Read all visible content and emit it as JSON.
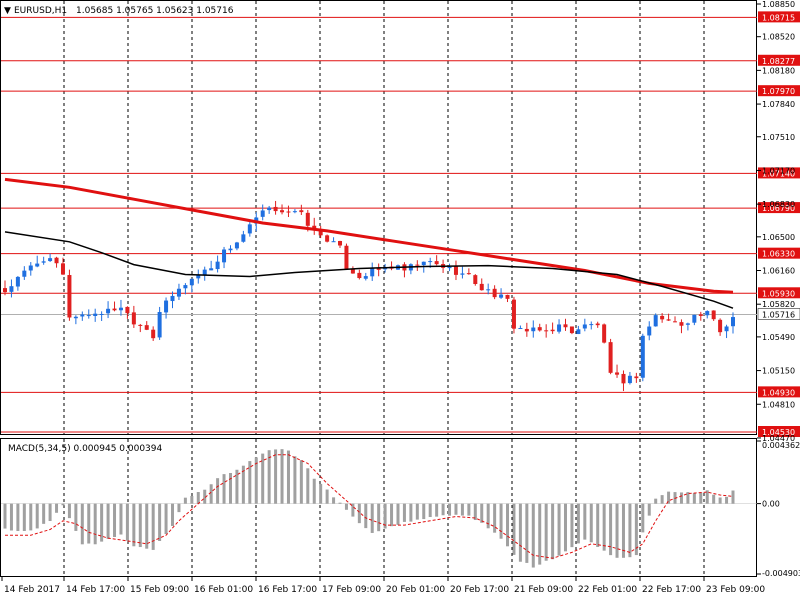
{
  "header": {
    "symbol": "EURUSD,H1",
    "ohlc": "1.05685 1.05765 1.05623 1.05716",
    "arrow": "▼"
  },
  "macd_header": {
    "label": "MACD(5,34,5) 0.000945 0.000394"
  },
  "colors": {
    "bull": "#1f6fe0",
    "bear": "#e02020",
    "ma_red": "#e01010",
    "ma_black": "#000000",
    "level": "#e01010",
    "macd_hist": "#a0a0a0",
    "macd_signal": "#e01010",
    "grid": "#000000"
  },
  "chart_data": [
    {
      "type": "line",
      "name": "EURUSD H1 price (candlesticks)",
      "ylim": [
        1.0453,
        1.0885
      ],
      "y_ticks": [
        "1.08850",
        "1.08520",
        "1.08180",
        "1.07840",
        "1.07510",
        "1.07170",
        "1.06830",
        "1.06500",
        "1.06160",
        "1.05820",
        "1.05490",
        "1.05150",
        "1.04810",
        "1.04470"
      ],
      "x_ticks": [
        "14 Feb 2017",
        "14 Feb 17:00",
        "15 Feb 09:00",
        "16 Feb 01:00",
        "16 Feb 17:00",
        "17 Feb 09:00",
        "20 Feb 01:00",
        "20 Feb 17:00",
        "21 Feb 09:00",
        "22 Feb 01:00",
        "22 Feb 17:00",
        "23 Feb 09:00"
      ],
      "horizontal_levels": [
        "1.08715",
        "1.08277",
        "1.07970",
        "1.07140",
        "1.06790",
        "1.06330",
        "1.05930",
        "1.04930",
        "1.04530"
      ],
      "current_price": "1.05716",
      "close_path": [
        [
          0,
          1.0595
        ],
        [
          4,
          1.062
        ],
        [
          6,
          1.0628
        ],
        [
          8,
          1.0622
        ],
        [
          9,
          1.061
        ],
        [
          10,
          1.057
        ],
        [
          13,
          1.0572
        ],
        [
          16,
          1.0575
        ],
        [
          18,
          1.058
        ],
        [
          20,
          1.0565
        ],
        [
          22,
          1.0558
        ],
        [
          23,
          1.055
        ],
        [
          24,
          1.0575
        ],
        [
          26,
          1.059
        ],
        [
          28,
          1.0603
        ],
        [
          30,
          1.0612
        ],
        [
          32,
          1.062
        ],
        [
          34,
          1.0635
        ],
        [
          36,
          1.0645
        ],
        [
          38,
          1.066
        ],
        [
          40,
          1.0675
        ],
        [
          42,
          1.0678
        ],
        [
          44,
          1.0676
        ],
        [
          46,
          1.0672
        ],
        [
          48,
          1.0655
        ],
        [
          50,
          1.0648
        ],
        [
          52,
          1.0638
        ],
        [
          53,
          1.062
        ],
        [
          55,
          1.061
        ],
        [
          57,
          1.0615
        ],
        [
          60,
          1.062
        ],
        [
          62,
          1.0616
        ],
        [
          64,
          1.0622
        ],
        [
          66,
          1.0624
        ],
        [
          68,
          1.062
        ],
        [
          70,
          1.0615
        ],
        [
          72,
          1.061
        ],
        [
          74,
          1.0598
        ],
        [
          76,
          1.0592
        ],
        [
          78,
          1.0585
        ],
        [
          79,
          1.056
        ],
        [
          81,
          1.0555
        ],
        [
          84,
          1.0555
        ],
        [
          86,
          1.056
        ],
        [
          88,
          1.0555
        ],
        [
          90,
          1.056
        ],
        [
          92,
          1.0562
        ],
        [
          93,
          1.054
        ],
        [
          94,
          1.051
        ],
        [
          96,
          1.0505
        ],
        [
          98,
          1.051
        ],
        [
          99,
          1.055
        ],
        [
          101,
          1.057
        ],
        [
          103,
          1.0565
        ],
        [
          105,
          1.0562
        ],
        [
          107,
          1.057
        ],
        [
          109,
          1.0572
        ],
        [
          110,
          1.0565
        ],
        [
          111,
          1.0555
        ],
        [
          112,
          1.056
        ],
        [
          113,
          1.0572
        ]
      ],
      "series": [
        {
          "color": "#e01010",
          "points": [
            [
              0,
              1.0708
            ],
            [
              10,
              1.07
            ],
            [
              20,
              1.0688
            ],
            [
              30,
              1.0676
            ],
            [
              40,
              1.0664
            ],
            [
              50,
              1.0656
            ],
            [
              60,
              1.0646
            ],
            [
              70,
              1.0636
            ],
            [
              80,
              1.0626
            ],
            [
              90,
              1.0616
            ],
            [
              100,
              1.0603
            ],
            [
              110,
              1.0595
            ],
            [
              113,
              1.0594
            ]
          ]
        },
        {
          "color": "#000000",
          "points": [
            [
              0,
              1.0655
            ],
            [
              10,
              1.0645
            ],
            [
              15,
              1.0634
            ],
            [
              20,
              1.0622
            ],
            [
              28,
              1.0612
            ],
            [
              38,
              1.061
            ],
            [
              45,
              1.0614
            ],
            [
              55,
              1.0618
            ],
            [
              65,
              1.062
            ],
            [
              75,
              1.0621
            ],
            [
              85,
              1.0618
            ],
            [
              95,
              1.0612
            ],
            [
              102,
              1.06
            ],
            [
              110,
              1.0585
            ],
            [
              113,
              1.0578
            ]
          ]
        }
      ]
    },
    {
      "type": "bar",
      "name": "MACD(5,34,5)",
      "ylim": [
        -0.004903,
        0.004362
      ],
      "y_ticks": [
        "0.004362",
        "0.00",
        "-0.004903"
      ],
      "histogram_path": [
        [
          0,
          -0.0018
        ],
        [
          4,
          -0.0019
        ],
        [
          7,
          -0.0012
        ],
        [
          9,
          -0.0001
        ],
        [
          10,
          -0.001
        ],
        [
          12,
          -0.0028
        ],
        [
          14,
          -0.0029
        ],
        [
          16,
          -0.0025
        ],
        [
          18,
          -0.0022
        ],
        [
          20,
          -0.003
        ],
        [
          23,
          -0.0032
        ],
        [
          26,
          -0.0016
        ],
        [
          28,
          0.0004
        ],
        [
          31,
          0.001
        ],
        [
          33,
          0.0018
        ],
        [
          36,
          0.0024
        ],
        [
          38,
          0.003
        ],
        [
          40,
          0.0035
        ],
        [
          42,
          0.0038
        ],
        [
          44,
          0.0037
        ],
        [
          46,
          0.003
        ],
        [
          48,
          0.0018
        ],
        [
          51,
          0.0005
        ],
        [
          53,
          -0.0005
        ],
        [
          55,
          -0.0014
        ],
        [
          57,
          -0.002
        ],
        [
          60,
          -0.0016
        ],
        [
          63,
          -0.0012
        ],
        [
          66,
          -0.001
        ],
        [
          69,
          -0.0008
        ],
        [
          72,
          -0.0009
        ],
        [
          74,
          -0.0014
        ],
        [
          76,
          -0.002
        ],
        [
          78,
          -0.003
        ],
        [
          80,
          -0.004
        ],
        [
          82,
          -0.0044
        ],
        [
          84,
          -0.004
        ],
        [
          86,
          -0.0036
        ],
        [
          88,
          -0.003
        ],
        [
          90,
          -0.0025
        ],
        [
          92,
          -0.003
        ],
        [
          94,
          -0.0036
        ],
        [
          96,
          -0.0038
        ],
        [
          98,
          -0.0036
        ],
        [
          99,
          -0.002
        ],
        [
          101,
          0.0003
        ],
        [
          103,
          0.0009
        ],
        [
          105,
          0.0008
        ],
        [
          107,
          0.0007
        ],
        [
          109,
          0.001
        ],
        [
          110,
          0.0006
        ],
        [
          111,
          0.0005
        ],
        [
          112,
          0.0004
        ],
        [
          113,
          0.0009
        ]
      ],
      "signal_path": [
        [
          0,
          -0.0022
        ],
        [
          4,
          -0.0022
        ],
        [
          7,
          -0.0018
        ],
        [
          9,
          -0.0012
        ],
        [
          11,
          -0.0014
        ],
        [
          13,
          -0.002
        ],
        [
          16,
          -0.0024
        ],
        [
          19,
          -0.0026
        ],
        [
          22,
          -0.0028
        ],
        [
          25,
          -0.0022
        ],
        [
          27,
          -0.0012
        ],
        [
          30,
          0.0
        ],
        [
          33,
          0.0012
        ],
        [
          36,
          0.002
        ],
        [
          39,
          0.0028
        ],
        [
          42,
          0.0034
        ],
        [
          44,
          0.0034
        ],
        [
          47,
          0.0028
        ],
        [
          50,
          0.0014
        ],
        [
          53,
          0.0002
        ],
        [
          56,
          -0.001
        ],
        [
          59,
          -0.0015
        ],
        [
          62,
          -0.0015
        ],
        [
          66,
          -0.0012
        ],
        [
          70,
          -0.0009
        ],
        [
          73,
          -0.001
        ],
        [
          76,
          -0.0016
        ],
        [
          79,
          -0.0026
        ],
        [
          82,
          -0.0036
        ],
        [
          85,
          -0.0038
        ],
        [
          88,
          -0.0034
        ],
        [
          91,
          -0.0028
        ],
        [
          94,
          -0.003
        ],
        [
          97,
          -0.0034
        ],
        [
          99,
          -0.0028
        ],
        [
          101,
          -0.0012
        ],
        [
          103,
          0.0002
        ],
        [
          106,
          0.0007
        ],
        [
          109,
          0.0008
        ],
        [
          111,
          0.0006
        ],
        [
          113,
          0.0005
        ]
      ]
    }
  ]
}
